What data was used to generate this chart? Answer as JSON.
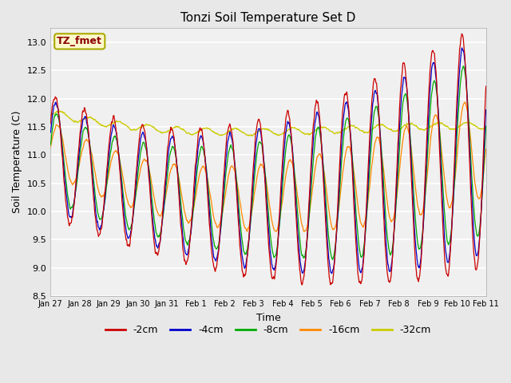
{
  "title": "Tonzi Soil Temperature Set D",
  "xlabel": "Time",
  "ylabel": "Soil Temperature (C)",
  "ylim": [
    8.5,
    13.25
  ],
  "annotation": "TZ_fmet",
  "annotation_color": "#8B0000",
  "annotation_bg": "#FFFACD",
  "bg_color": "#E8E8E8",
  "plot_bg": "#F0F0F0",
  "legend_labels": [
    "-2cm",
    "-4cm",
    "-8cm",
    "-16cm",
    "-32cm"
  ],
  "line_colors": [
    "#CC0000",
    "#0000CC",
    "#00AA00",
    "#FF8800",
    "#CCCC00"
  ],
  "xtick_labels": [
    "Jan 27",
    "Jan 28",
    "Jan 29",
    "Jan 30",
    "Jan 31",
    "Feb 1",
    "Feb 2",
    "Feb 3",
    "Feb 4",
    "Feb 5",
    "Feb 6",
    "Feb 7",
    "Feb 8",
    "Feb 9",
    "Feb 10",
    "Feb 11"
  ],
  "ytick_labels": [
    "8.5",
    "9.0",
    "9.5",
    "10.0",
    "10.5",
    "11.0",
    "11.5",
    "12.0",
    "12.5",
    "13.0"
  ],
  "figsize": [
    6.4,
    4.8
  ],
  "dpi": 100
}
